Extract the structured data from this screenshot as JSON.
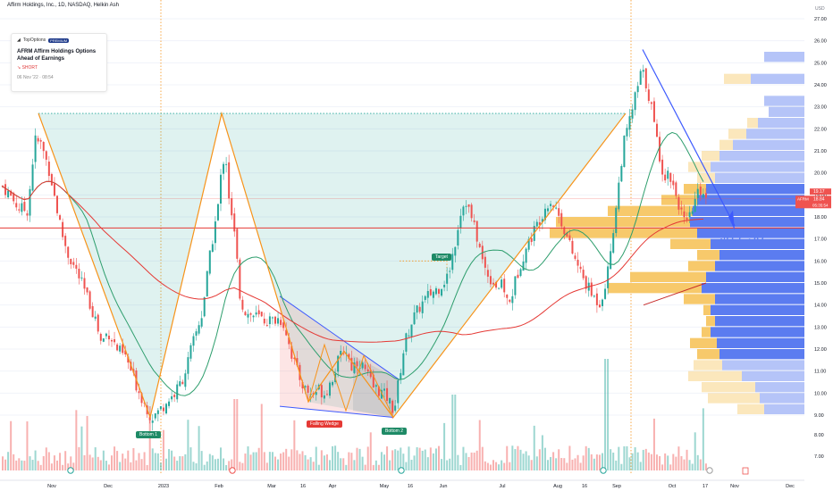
{
  "header": {
    "symbol_line": "Affirm Holdings, Inc., 1D, NASDAQ, Helkin Ash"
  },
  "annotation": {
    "source": "TopOptions",
    "badge": "PREMIUM",
    "title": "AFRM  Affirm Holdings Options Ahead of Earnings",
    "side": "SHORT",
    "time": "06 Nov '22 · 08:54"
  },
  "labels": {
    "bottom1": "Bottom 1",
    "bottom2": "Bottom 2",
    "falling_wedge": "Falling Wedge",
    "target": "Target",
    "price_target": "$17.50"
  },
  "price_axis": {
    "currency": "USD",
    "ticks": [
      "27.00",
      "26.00",
      "25.00",
      "24.00",
      "23.00",
      "22.00",
      "21.00",
      "20.00",
      "19.00",
      "18.00",
      "17.00",
      "16.00",
      "15.00",
      "14.00",
      "13.00",
      "12.00",
      "11.00",
      "10.00",
      "9.00"
    ],
    "volume_ticks": [
      "8.00",
      "7.00"
    ],
    "last_price_tag": {
      "symbol": "AFRM",
      "value": "18.84",
      "countdown": "05:35:54",
      "prev": "19.17"
    }
  },
  "time_axis": {
    "ticks": [
      "Nov",
      "Dec",
      "2023",
      "Feb",
      "Mar",
      "16",
      "Apr",
      "May",
      "16",
      "Jun",
      "Jul",
      "Aug",
      "16",
      "Sep",
      "Oct",
      "17",
      "Nov",
      "Dec"
    ]
  },
  "colors": {
    "up": "#26a69a",
    "down": "#ef5350",
    "pattern": "#f7931a",
    "wedge": "#3d5afe",
    "ma_fast": "#2e9e6d",
    "ma_slow": "#e53935",
    "vp_up": "#5b7cf0",
    "vp_down": "#f7c96b"
  },
  "chart_data": {
    "type": "candlestick",
    "symbol": "AFRM",
    "timeframe": "1D",
    "ylim": [
      8.5,
      27.5
    ],
    "horizontal_levels": [
      17.5,
      22.7,
      18.84
    ],
    "path_close": [
      [
        0,
        19.5
      ],
      [
        10,
        19.0
      ],
      [
        20,
        18.4
      ],
      [
        30,
        18.3
      ],
      [
        38,
        21.5
      ],
      [
        45,
        21.3
      ],
      [
        55,
        20.0
      ],
      [
        62,
        18.5
      ],
      [
        68,
        17.3
      ],
      [
        75,
        16.3
      ],
      [
        85,
        15.5
      ],
      [
        95,
        14.5
      ],
      [
        105,
        13.5
      ],
      [
        112,
        12.3
      ],
      [
        120,
        12.8
      ],
      [
        130,
        12.0
      ],
      [
        140,
        11.6
      ],
      [
        150,
        10.5
      ],
      [
        160,
        9.6
      ],
      [
        168,
        8.9
      ],
      [
        175,
        9.1
      ],
      [
        185,
        9.6
      ],
      [
        195,
        10.0
      ],
      [
        205,
        10.8
      ],
      [
        215,
        12.3
      ],
      [
        225,
        13.6
      ],
      [
        232,
        15.7
      ],
      [
        238,
        17.3
      ],
      [
        243,
        18.5
      ],
      [
        248,
        20.6
      ],
      [
        252,
        20.6
      ],
      [
        256,
        18.5
      ],
      [
        262,
        17.0
      ],
      [
        268,
        14.2
      ],
      [
        275,
        13.6
      ],
      [
        285,
        13.5
      ],
      [
        295,
        13.3
      ],
      [
        305,
        13.3
      ],
      [
        312,
        13.4
      ],
      [
        318,
        13.0
      ],
      [
        325,
        11.8
      ],
      [
        332,
        10.9
      ],
      [
        340,
        10.2
      ],
      [
        348,
        9.9
      ],
      [
        355,
        10.2
      ],
      [
        362,
        10.0
      ],
      [
        370,
        10.6
      ],
      [
        378,
        11.5
      ],
      [
        385,
        12.1
      ],
      [
        392,
        11.2
      ],
      [
        400,
        11.5
      ],
      [
        408,
        11.0
      ],
      [
        416,
        10.3
      ],
      [
        424,
        10.1
      ],
      [
        432,
        9.8
      ],
      [
        440,
        9.2
      ],
      [
        446,
        10.8
      ],
      [
        452,
        12.3
      ],
      [
        460,
        13.3
      ],
      [
        470,
        14.0
      ],
      [
        480,
        14.5
      ],
      [
        490,
        14.8
      ],
      [
        500,
        15.3
      ],
      [
        508,
        16.8
      ],
      [
        514,
        18.2
      ],
      [
        520,
        18.8
      ],
      [
        526,
        18.0
      ],
      [
        532,
        17.2
      ],
      [
        540,
        15.8
      ],
      [
        548,
        15.2
      ],
      [
        556,
        14.8
      ],
      [
        562,
        14.9
      ],
      [
        568,
        13.9
      ],
      [
        575,
        15.0
      ],
      [
        582,
        16.0
      ],
      [
        590,
        16.8
      ],
      [
        598,
        17.5
      ],
      [
        606,
        18.2
      ],
      [
        614,
        18.8
      ],
      [
        622,
        18.3
      ],
      [
        630,
        17.5
      ],
      [
        638,
        16.5
      ],
      [
        646,
        15.7
      ],
      [
        654,
        15.0
      ],
      [
        662,
        14.4
      ],
      [
        670,
        14.1
      ],
      [
        678,
        15.2
      ],
      [
        684,
        17.1
      ],
      [
        690,
        19.0
      ],
      [
        696,
        21.2
      ],
      [
        702,
        22.1
      ],
      [
        708,
        23.2
      ],
      [
        712,
        23.8
      ],
      [
        717,
        24.7
      ],
      [
        722,
        24.0
      ],
      [
        727,
        23.2
      ],
      [
        732,
        21.9
      ],
      [
        737,
        20.8
      ],
      [
        742,
        19.8
      ],
      [
        748,
        20.0
      ],
      [
        754,
        19.2
      ],
      [
        760,
        18.4
      ],
      [
        766,
        17.5
      ],
      [
        772,
        18.1
      ],
      [
        778,
        18.9
      ],
      [
        784,
        19.3
      ],
      [
        790,
        18.84
      ]
    ],
    "volume_profile": [
      {
        "price": 25.25,
        "up_len": 45,
        "down_len": 0,
        "faded": true
      },
      {
        "price": 24.25,
        "up_len": 60,
        "down_len": 30,
        "faded": true
      },
      {
        "price": 23.25,
        "up_len": 45,
        "down_len": 0,
        "faded": true
      },
      {
        "price": 22.75,
        "up_len": 40,
        "down_len": 0,
        "faded": true
      },
      {
        "price": 22.25,
        "up_len": 52,
        "down_len": 12,
        "faded": true
      },
      {
        "price": 21.75,
        "up_len": 65,
        "down_len": 20,
        "faded": true
      },
      {
        "price": 21.25,
        "up_len": 80,
        "down_len": 15,
        "faded": true
      },
      {
        "price": 20.75,
        "up_len": 95,
        "down_len": 20,
        "faded": true
      },
      {
        "price": 20.25,
        "up_len": 105,
        "down_len": 25,
        "faded": true
      },
      {
        "price": 19.75,
        "up_len": 100,
        "down_len": 20,
        "faded": true
      },
      {
        "price": 19.25,
        "up_len": 110,
        "down_len": 25,
        "faded": false
      },
      {
        "price": 18.75,
        "up_len": 120,
        "down_len": 40,
        "faded": false
      },
      {
        "price": 18.25,
        "up_len": 125,
        "down_len": 95,
        "faded": false
      },
      {
        "price": 17.75,
        "up_len": 128,
        "down_len": 150,
        "faded": false
      },
      {
        "price": 17.25,
        "up_len": 120,
        "down_len": 165,
        "faded": false
      },
      {
        "price": 16.75,
        "up_len": 105,
        "down_len": 45,
        "faded": false
      },
      {
        "price": 16.25,
        "up_len": 95,
        "down_len": 25,
        "faded": false
      },
      {
        "price": 15.75,
        "up_len": 100,
        "down_len": 30,
        "faded": false
      },
      {
        "price": 15.25,
        "up_len": 110,
        "down_len": 85,
        "faded": false
      },
      {
        "price": 14.75,
        "up_len": 115,
        "down_len": 105,
        "faded": false
      },
      {
        "price": 14.25,
        "up_len": 100,
        "down_len": 35,
        "faded": false
      },
      {
        "price": 13.75,
        "up_len": 105,
        "down_len": 8,
        "faded": false
      },
      {
        "price": 13.25,
        "up_len": 100,
        "down_len": 10,
        "faded": false
      },
      {
        "price": 12.75,
        "up_len": 105,
        "down_len": 10,
        "faded": false
      },
      {
        "price": 12.25,
        "up_len": 98,
        "down_len": 30,
        "faded": false
      },
      {
        "price": 11.75,
        "up_len": 95,
        "down_len": 25,
        "faded": false
      },
      {
        "price": 11.25,
        "up_len": 92,
        "down_len": 32,
        "faded": true
      },
      {
        "price": 10.75,
        "up_len": 70,
        "down_len": 60,
        "faded": true
      },
      {
        "price": 10.25,
        "up_len": 55,
        "down_len": 60,
        "faded": true
      },
      {
        "price": 9.75,
        "up_len": 50,
        "down_len": 58,
        "faded": true
      },
      {
        "price": 9.25,
        "up_len": 45,
        "down_len": 30,
        "faded": true
      }
    ],
    "pattern_points": [
      [
        43,
        22.7
      ],
      [
        168,
        8.9
      ],
      [
        248,
        22.7
      ],
      [
        345,
        9.6
      ],
      [
        385,
        11.9
      ],
      [
        440,
        8.9
      ],
      [
        700,
        22.7
      ]
    ]
  }
}
